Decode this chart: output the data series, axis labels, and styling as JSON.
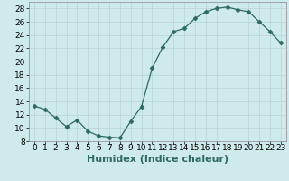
{
  "x": [
    0,
    1,
    2,
    3,
    4,
    5,
    6,
    7,
    8,
    9,
    10,
    11,
    12,
    13,
    14,
    15,
    16,
    17,
    18,
    19,
    20,
    21,
    22,
    23
  ],
  "y": [
    13.3,
    12.8,
    11.5,
    10.2,
    11.2,
    9.5,
    8.8,
    8.6,
    8.5,
    11.0,
    13.2,
    19.0,
    22.2,
    24.5,
    25.0,
    26.5,
    27.5,
    28.0,
    28.2,
    27.8,
    27.5,
    26.0,
    24.5,
    22.8
  ],
  "xlabel": "Humidex (Indice chaleur)",
  "xlim": [
    -0.5,
    23.5
  ],
  "ylim": [
    8,
    29
  ],
  "yticks": [
    8,
    10,
    12,
    14,
    16,
    18,
    20,
    22,
    24,
    26,
    28
  ],
  "xticks": [
    0,
    1,
    2,
    3,
    4,
    5,
    6,
    7,
    8,
    9,
    10,
    11,
    12,
    13,
    14,
    15,
    16,
    17,
    18,
    19,
    20,
    21,
    22,
    23
  ],
  "line_color": "#2d6b5e",
  "marker": "D",
  "marker_size": 2.5,
  "bg_color": "#ceeaea",
  "grid_color": "#b8d4d4",
  "xlabel_fontsize": 8,
  "tick_fontsize": 6.5
}
